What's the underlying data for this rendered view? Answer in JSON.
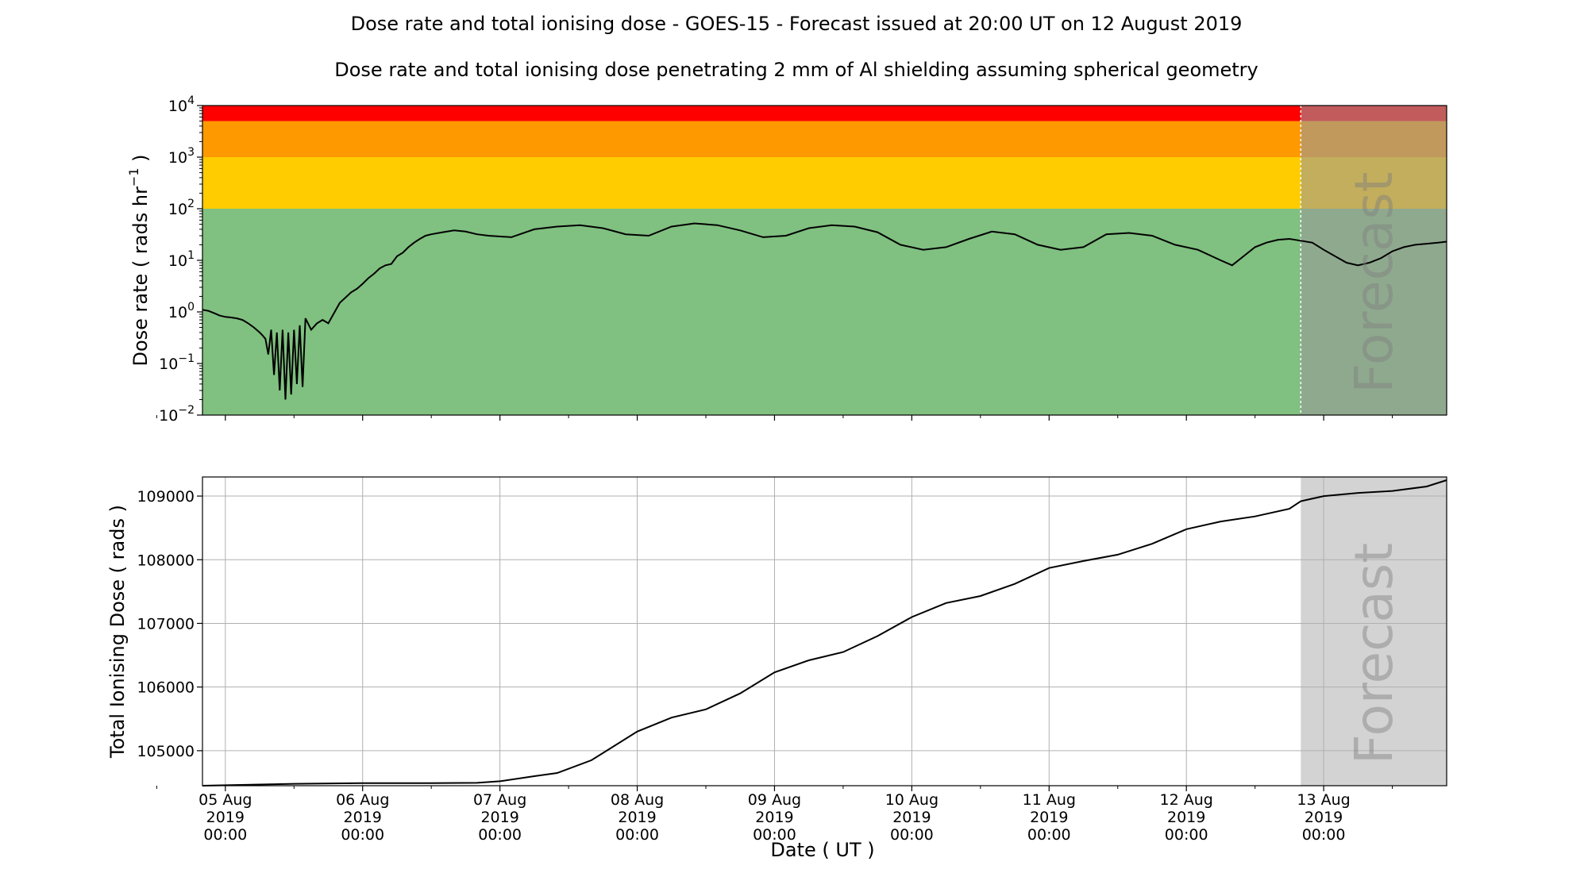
{
  "title": "Dose rate and total ionising dose - GOES-15 - Forecast issued at 20:00 UT on 12 August 2019",
  "subtitle": "Dose rate and total ionising dose penetrating 2 mm of Al shielding assuming spherical geometry",
  "forecast_label": "Forecast",
  "xlabel": "Date ( UT )",
  "x_ticks": [
    {
      "day": 0,
      "line1": "05 Aug",
      "line2": "2019",
      "line3": "00:00"
    },
    {
      "day": 1,
      "line1": "06 Aug",
      "line2": "2019",
      "line3": "00:00"
    },
    {
      "day": 2,
      "line1": "07 Aug",
      "line2": "2019",
      "line3": "00:00"
    },
    {
      "day": 3,
      "line1": "08 Aug",
      "line2": "2019",
      "line3": "00:00"
    },
    {
      "day": 4,
      "line1": "09 Aug",
      "line2": "2019",
      "line3": "00:00"
    },
    {
      "day": 5,
      "line1": "10 Aug",
      "line2": "2019",
      "line3": "00:00"
    },
    {
      "day": 6,
      "line1": "11 Aug",
      "line2": "2019",
      "line3": "00:00"
    },
    {
      "day": 7,
      "line1": "12 Aug",
      "line2": "2019",
      "line3": "00:00"
    },
    {
      "day": 8,
      "line1": "13 Aug",
      "line2": "2019",
      "line3": "00:00"
    }
  ],
  "chart_data": [
    {
      "type": "line",
      "panel": "dose-rate",
      "ylabel": "Dose rate ( rads hr",
      "ylabel_sup": "−1",
      "ylabel_end": " )",
      "yscale": "log",
      "ylim_exp": [
        -2,
        4
      ],
      "xlim": [
        "2019-08-04 20:00",
        "2019-08-13 21:30"
      ],
      "forecast_start": "2019-08-12 20:00",
      "y_ticks": [
        {
          "exp": 4,
          "base": "10",
          "sup": "4"
        },
        {
          "exp": 3,
          "base": "10",
          "sup": "3"
        },
        {
          "exp": 2,
          "base": "10",
          "sup": "2"
        },
        {
          "exp": 1,
          "base": "10",
          "sup": "1"
        },
        {
          "exp": 0,
          "base": "10",
          "sup": "0"
        },
        {
          "exp": -1,
          "base": "10",
          "sup": "−1"
        },
        {
          "exp": -2,
          "base": "10",
          "sup": "−2"
        }
      ],
      "bands": [
        {
          "from": 0.01,
          "to": 100,
          "color": "#80c080"
        },
        {
          "from": 100,
          "to": 1000,
          "color": "#ffcc00"
        },
        {
          "from": 1000,
          "to": 5000,
          "color": "#ff9900"
        },
        {
          "from": 5000,
          "to": 10000,
          "color": "#ff0000"
        }
      ],
      "line_color": "#000000",
      "series": [
        {
          "x": [
            "2019-08-04 20:00",
            "2019-08-04 21:00",
            "2019-08-04 22:00",
            "2019-08-04 23:00",
            "2019-08-05 00:00",
            "2019-08-05 01:00",
            "2019-08-05 02:00",
            "2019-08-05 03:00",
            "2019-08-05 04:00",
            "2019-08-05 05:00",
            "2019-08-05 06:00",
            "2019-08-05 06:30",
            "2019-08-05 07:00",
            "2019-08-05 07:30",
            "2019-08-05 08:00",
            "2019-08-05 08:30",
            "2019-08-05 09:00",
            "2019-08-05 09:30",
            "2019-08-05 10:00",
            "2019-08-05 10:30",
            "2019-08-05 11:00",
            "2019-08-05 11:30",
            "2019-08-05 12:00",
            "2019-08-05 12:30",
            "2019-08-05 13:00",
            "2019-08-05 13:30",
            "2019-08-05 14:00",
            "2019-08-05 15:00",
            "2019-08-05 16:00",
            "2019-08-05 17:00",
            "2019-08-05 18:00",
            "2019-08-05 20:00",
            "2019-08-05 22:00",
            "2019-08-05 23:00",
            "2019-08-06 00:00",
            "2019-08-06 01:00",
            "2019-08-06 02:00",
            "2019-08-06 03:00",
            "2019-08-06 04:00",
            "2019-08-06 05:00",
            "2019-08-06 06:00",
            "2019-08-06 07:00",
            "2019-08-06 08:00",
            "2019-08-06 09:00",
            "2019-08-06 10:00",
            "2019-08-06 11:00",
            "2019-08-06 12:00",
            "2019-08-06 14:00",
            "2019-08-06 16:00",
            "2019-08-06 18:00",
            "2019-08-06 20:00",
            "2019-08-06 22:00",
            "2019-08-07 02:00",
            "2019-08-07 06:00",
            "2019-08-07 10:00",
            "2019-08-07 14:00",
            "2019-08-07 18:00",
            "2019-08-07 22:00",
            "2019-08-08 02:00",
            "2019-08-08 06:00",
            "2019-08-08 10:00",
            "2019-08-08 14:00",
            "2019-08-08 18:00",
            "2019-08-08 22:00",
            "2019-08-09 02:00",
            "2019-08-09 06:00",
            "2019-08-09 10:00",
            "2019-08-09 14:00",
            "2019-08-09 18:00",
            "2019-08-09 22:00",
            "2019-08-10 02:00",
            "2019-08-10 06:00",
            "2019-08-10 10:00",
            "2019-08-10 14:00",
            "2019-08-10 18:00",
            "2019-08-10 22:00",
            "2019-08-11 02:00",
            "2019-08-11 06:00",
            "2019-08-11 10:00",
            "2019-08-11 14:00",
            "2019-08-11 18:00",
            "2019-08-11 22:00",
            "2019-08-12 02:00",
            "2019-08-12 06:00",
            "2019-08-12 08:00",
            "2019-08-12 10:00",
            "2019-08-12 12:00",
            "2019-08-12 14:00",
            "2019-08-12 16:00",
            "2019-08-12 18:00",
            "2019-08-12 20:00",
            "2019-08-12 22:00",
            "2019-08-13 00:00",
            "2019-08-13 02:00",
            "2019-08-13 04:00",
            "2019-08-13 06:00",
            "2019-08-13 08:00",
            "2019-08-13 10:00",
            "2019-08-13 12:00",
            "2019-08-13 14:00",
            "2019-08-13 16:00",
            "2019-08-13 18:00",
            "2019-08-13 20:00",
            "2019-08-13 21:30"
          ],
          "y": [
            1.1,
            1.05,
            0.95,
            0.85,
            0.8,
            0.78,
            0.75,
            0.7,
            0.6,
            0.5,
            0.4,
            0.35,
            0.3,
            0.15,
            0.45,
            0.06,
            0.4,
            0.03,
            0.45,
            0.02,
            0.4,
            0.025,
            0.45,
            0.04,
            0.55,
            0.035,
            0.75,
            0.45,
            0.6,
            0.7,
            0.6,
            1.5,
            2.4,
            2.8,
            3.5,
            4.5,
            5.5,
            7.0,
            8.0,
            8.5,
            12,
            14,
            18,
            22,
            26,
            30,
            32,
            35,
            38,
            36,
            32,
            30,
            28,
            40,
            45,
            48,
            42,
            32,
            30,
            45,
            52,
            48,
            38,
            28,
            30,
            42,
            48,
            45,
            35,
            20,
            16,
            18,
            26,
            36,
            32,
            20,
            16,
            18,
            32,
            34,
            30,
            20,
            16,
            10,
            8,
            12,
            18,
            22,
            25,
            26,
            24,
            22,
            16,
            12,
            9,
            8,
            9,
            11,
            15,
            18,
            20,
            21,
            22,
            23
          ]
        }
      ]
    },
    {
      "type": "line",
      "panel": "total-dose",
      "ylabel": "Total Ionising Dose ( rads )",
      "yscale": "linear",
      "ylim": [
        104450,
        109300
      ],
      "xlim": [
        "2019-08-04 20:00",
        "2019-08-13 21:30"
      ],
      "forecast_start": "2019-08-12 20:00",
      "y_ticks": [
        "105000",
        "106000",
        "107000",
        "108000",
        "109000"
      ],
      "line_color": "#000000",
      "forecast_shade": "#d3d3d3",
      "series": [
        {
          "x": [
            "2019-08-04 20:00",
            "2019-08-05 12:00",
            "2019-08-06 00:00",
            "2019-08-06 12:00",
            "2019-08-06 20:00",
            "2019-08-07 00:00",
            "2019-08-07 06:00",
            "2019-08-07 10:00",
            "2019-08-07 16:00",
            "2019-08-08 00:00",
            "2019-08-08 06:00",
            "2019-08-08 12:00",
            "2019-08-08 18:00",
            "2019-08-09 00:00",
            "2019-08-09 06:00",
            "2019-08-09 12:00",
            "2019-08-09 18:00",
            "2019-08-10 00:00",
            "2019-08-10 06:00",
            "2019-08-10 12:00",
            "2019-08-10 18:00",
            "2019-08-11 00:00",
            "2019-08-11 06:00",
            "2019-08-11 12:00",
            "2019-08-11 18:00",
            "2019-08-12 00:00",
            "2019-08-12 06:00",
            "2019-08-12 12:00",
            "2019-08-12 18:00",
            "2019-08-12 20:00",
            "2019-08-13 00:00",
            "2019-08-13 06:00",
            "2019-08-13 12:00",
            "2019-08-13 18:00",
            "2019-08-13 21:30"
          ],
          "y": [
            104450,
            104480,
            104490,
            104490,
            104495,
            104520,
            104600,
            104650,
            104850,
            105300,
            105520,
            105650,
            105900,
            106230,
            106420,
            106550,
            106800,
            107100,
            107320,
            107430,
            107620,
            107870,
            107980,
            108080,
            108250,
            108480,
            108600,
            108680,
            108800,
            108920,
            109000,
            109050,
            109080,
            109150,
            109250
          ]
        }
      ]
    }
  ]
}
